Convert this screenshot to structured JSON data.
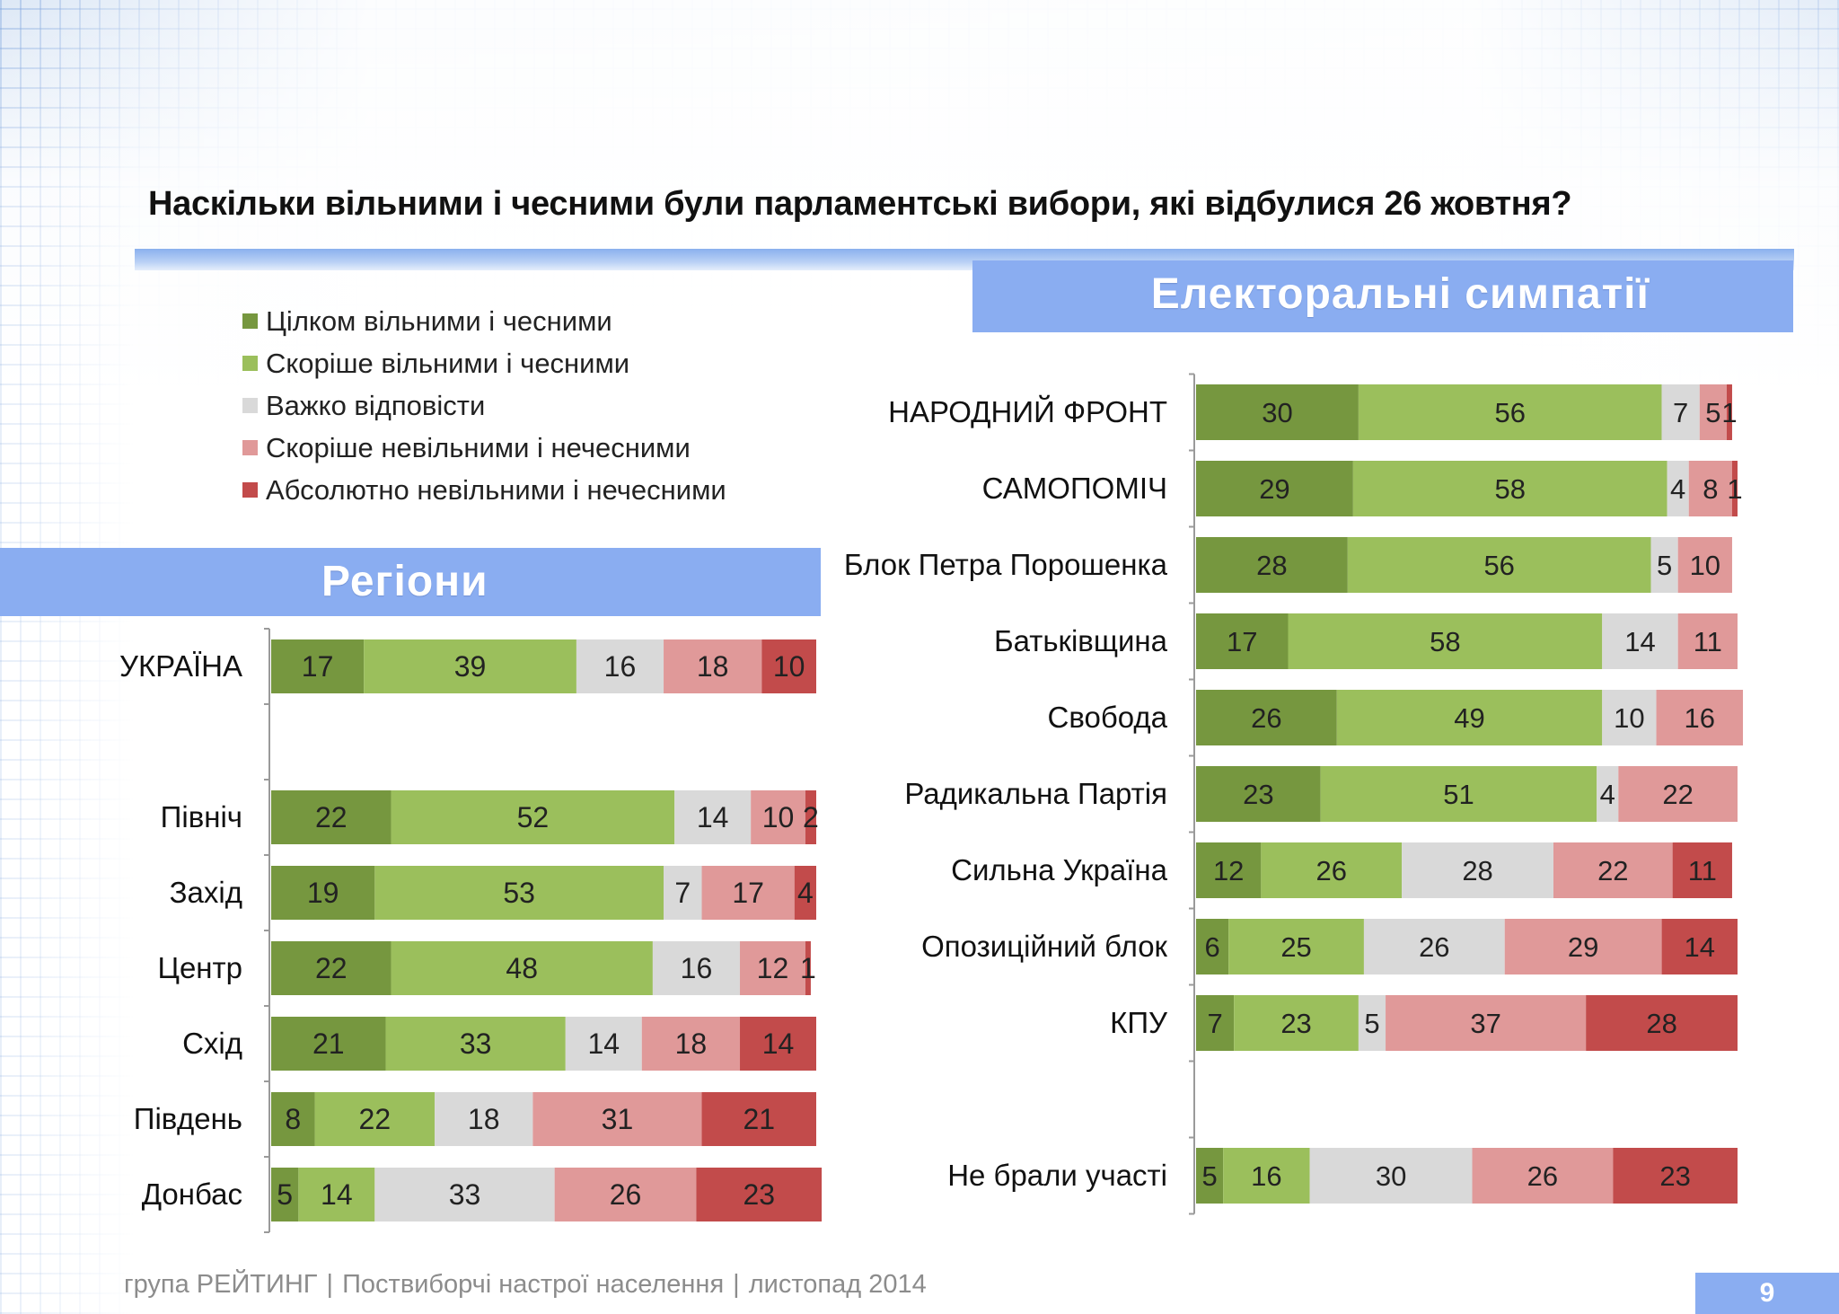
{
  "title": "Наскільки вільними і чесними були парламентські вибори, які відбулися 26 жовтня?",
  "legend": {
    "items": [
      {
        "label": "Цілком вільними і чесними",
        "color": "#76973f"
      },
      {
        "label": "Скоріше вільними і чесними",
        "color": "#9bbf5c"
      },
      {
        "label": "Важко відповісти",
        "color": "#d9d9d9"
      },
      {
        "label": "Скоріше невільними і нечесними",
        "color": "#e09999"
      },
      {
        "label": "Абсолютно невільними і нечесними",
        "color": "#c24b4b"
      }
    ]
  },
  "regions_banner": "Регіони",
  "parties_banner": "Електоральні симпатії",
  "footer": {
    "org": "група РЕЙТИНГ",
    "sep": "|",
    "report": "Поствиборчі настрої населення",
    "date": "листопад 2014"
  },
  "page_number": "9",
  "chart_data": [
    {
      "type": "bar",
      "orientation": "horizontal",
      "stacked": true,
      "title": "Регіони",
      "xlim": [
        0,
        100
      ],
      "series_names": [
        "Цілком вільними і чесними",
        "Скоріше вільними і чесними",
        "Важко відповісти",
        "Скоріше невільними і нечесними",
        "Абсолютно невільними і нечесними"
      ],
      "colors": [
        "#76973f",
        "#9bbf5c",
        "#d9d9d9",
        "#e09999",
        "#c24b4b"
      ],
      "categories": [
        "УКРАЇНА",
        "",
        "Північ",
        "Захід",
        "Центр",
        "Схід",
        "Південь",
        "Донбас"
      ],
      "values": [
        [
          17,
          39,
          16,
          18,
          10
        ],
        null,
        [
          22,
          52,
          14,
          10,
          2
        ],
        [
          19,
          53,
          7,
          17,
          4
        ],
        [
          22,
          48,
          16,
          12,
          1
        ],
        [
          21,
          33,
          14,
          18,
          14
        ],
        [
          8,
          22,
          18,
          31,
          21
        ],
        [
          5,
          14,
          33,
          26,
          23
        ]
      ]
    },
    {
      "type": "bar",
      "orientation": "horizontal",
      "stacked": true,
      "title": "Електоральні симпатії",
      "xlim": [
        0,
        100
      ],
      "series_names": [
        "Цілком вільними і чесними",
        "Скоріше вільними і чесними",
        "Важко відповісти",
        "Скоріше невільними і нечесними",
        "Абсолютно невільними і нечесними"
      ],
      "colors": [
        "#76973f",
        "#9bbf5c",
        "#d9d9d9",
        "#e09999",
        "#c24b4b"
      ],
      "categories": [
        "НАРОДНИЙ ФРОНТ",
        "САМОПОМІЧ",
        "Блок Петра Порошенка",
        "Батьківщина",
        "Свобода",
        "Радикальна Партія",
        "Сильна Україна",
        "Опозиційний блок",
        "КПУ",
        "",
        "Не брали участі"
      ],
      "values": [
        [
          30,
          56,
          7,
          5,
          1
        ],
        [
          29,
          58,
          4,
          8,
          1
        ],
        [
          28,
          56,
          5,
          10,
          0
        ],
        [
          17,
          58,
          14,
          11,
          0
        ],
        [
          26,
          49,
          10,
          16,
          0
        ],
        [
          23,
          51,
          4,
          22,
          0
        ],
        [
          12,
          26,
          28,
          22,
          11
        ],
        [
          6,
          25,
          26,
          29,
          14
        ],
        [
          7,
          23,
          5,
          37,
          28
        ],
        null,
        [
          5,
          16,
          30,
          26,
          23
        ]
      ]
    }
  ]
}
